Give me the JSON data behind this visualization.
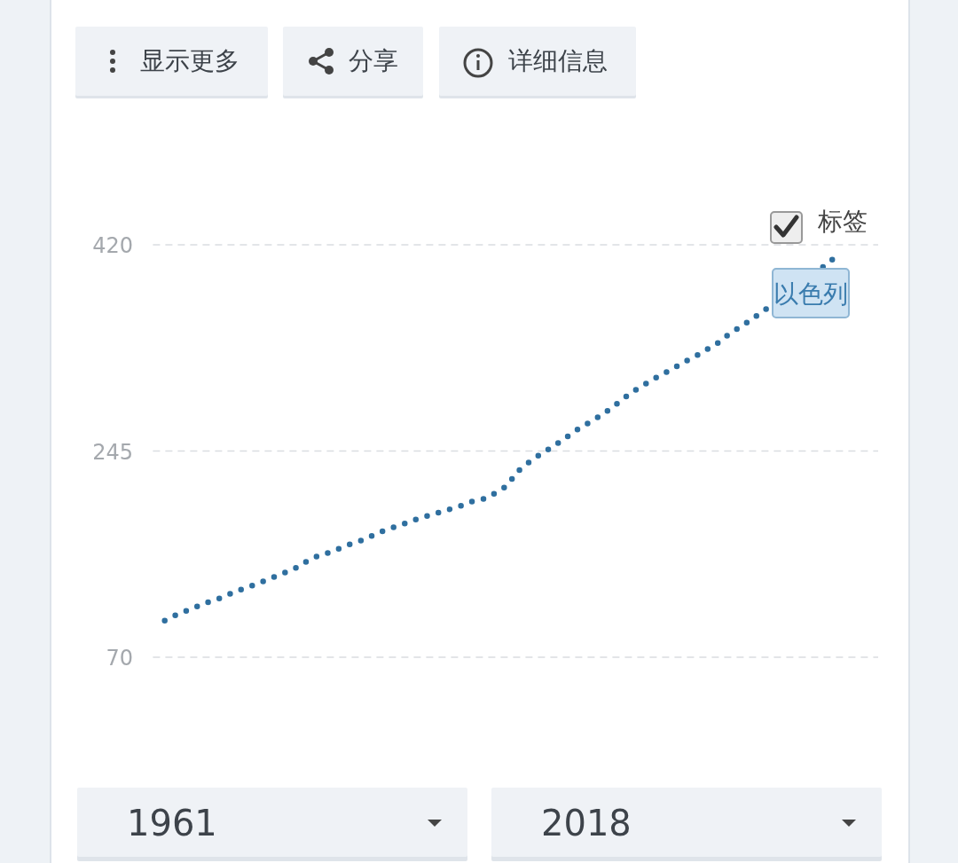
{
  "chart_data": {
    "type": "line",
    "categories": [
      null,
      null,
      null,
      null,
      null,
      null,
      null,
      null,
      null,
      null,
      null,
      null,
      null,
      null,
      null,
      null,
      null,
      null,
      null,
      null,
      null,
      null,
      null,
      null,
      null,
      null,
      null,
      null,
      null,
      null,
      null,
      null,
      null,
      null,
      null,
      null,
      null,
      null,
      null,
      null,
      null,
      null,
      null,
      null,
      null,
      null,
      null,
      null,
      null,
      null,
      null,
      null,
      null,
      null,
      null,
      null,
      null,
      null
    ],
    "series": [
      {
        "name": "以色列",
        "color": "#2f6f9f",
        "values": [
          101,
          106,
          110,
          114,
          118,
          121,
          126,
          129,
          133,
          137,
          141,
          145,
          151,
          156,
          159,
          163,
          167,
          170,
          175,
          179,
          182,
          186,
          189,
          192,
          195,
          198,
          202,
          204,
          209,
          215,
          228,
          236,
          243,
          249,
          256,
          263,
          269,
          275,
          282,
          290,
          297,
          303,
          309,
          314,
          320,
          325,
          331,
          337,
          345,
          351,
          358,
          365,
          null,
          null,
          null,
          null,
          402,
          410
        ]
      }
    ],
    "ylim": [
      70,
      420
    ],
    "yticks": [
      70,
      245,
      420
    ],
    "tick_labels": "y",
    "grid": "y",
    "line_style": "dotted",
    "annotations": [
      "显示更多",
      "分享",
      "详细信息",
      "标签",
      "1961",
      "2018"
    ]
  }
}
